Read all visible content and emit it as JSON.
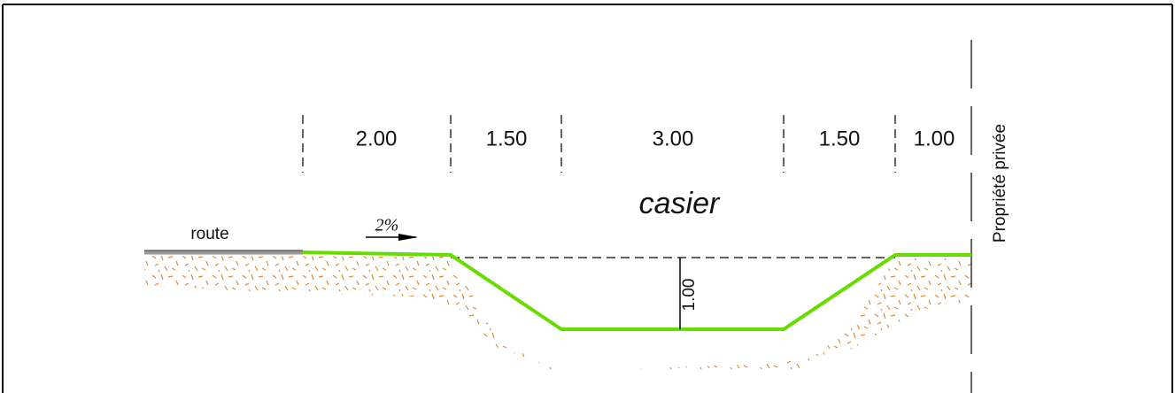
{
  "dimensions": [
    "2.00",
    "1.50",
    "3.00",
    "1.50",
    "1.00"
  ],
  "labels": {
    "zone": "casier",
    "road": "route",
    "slope": "2%",
    "depth": "1.00",
    "boundary": "Propriété privée"
  }
}
